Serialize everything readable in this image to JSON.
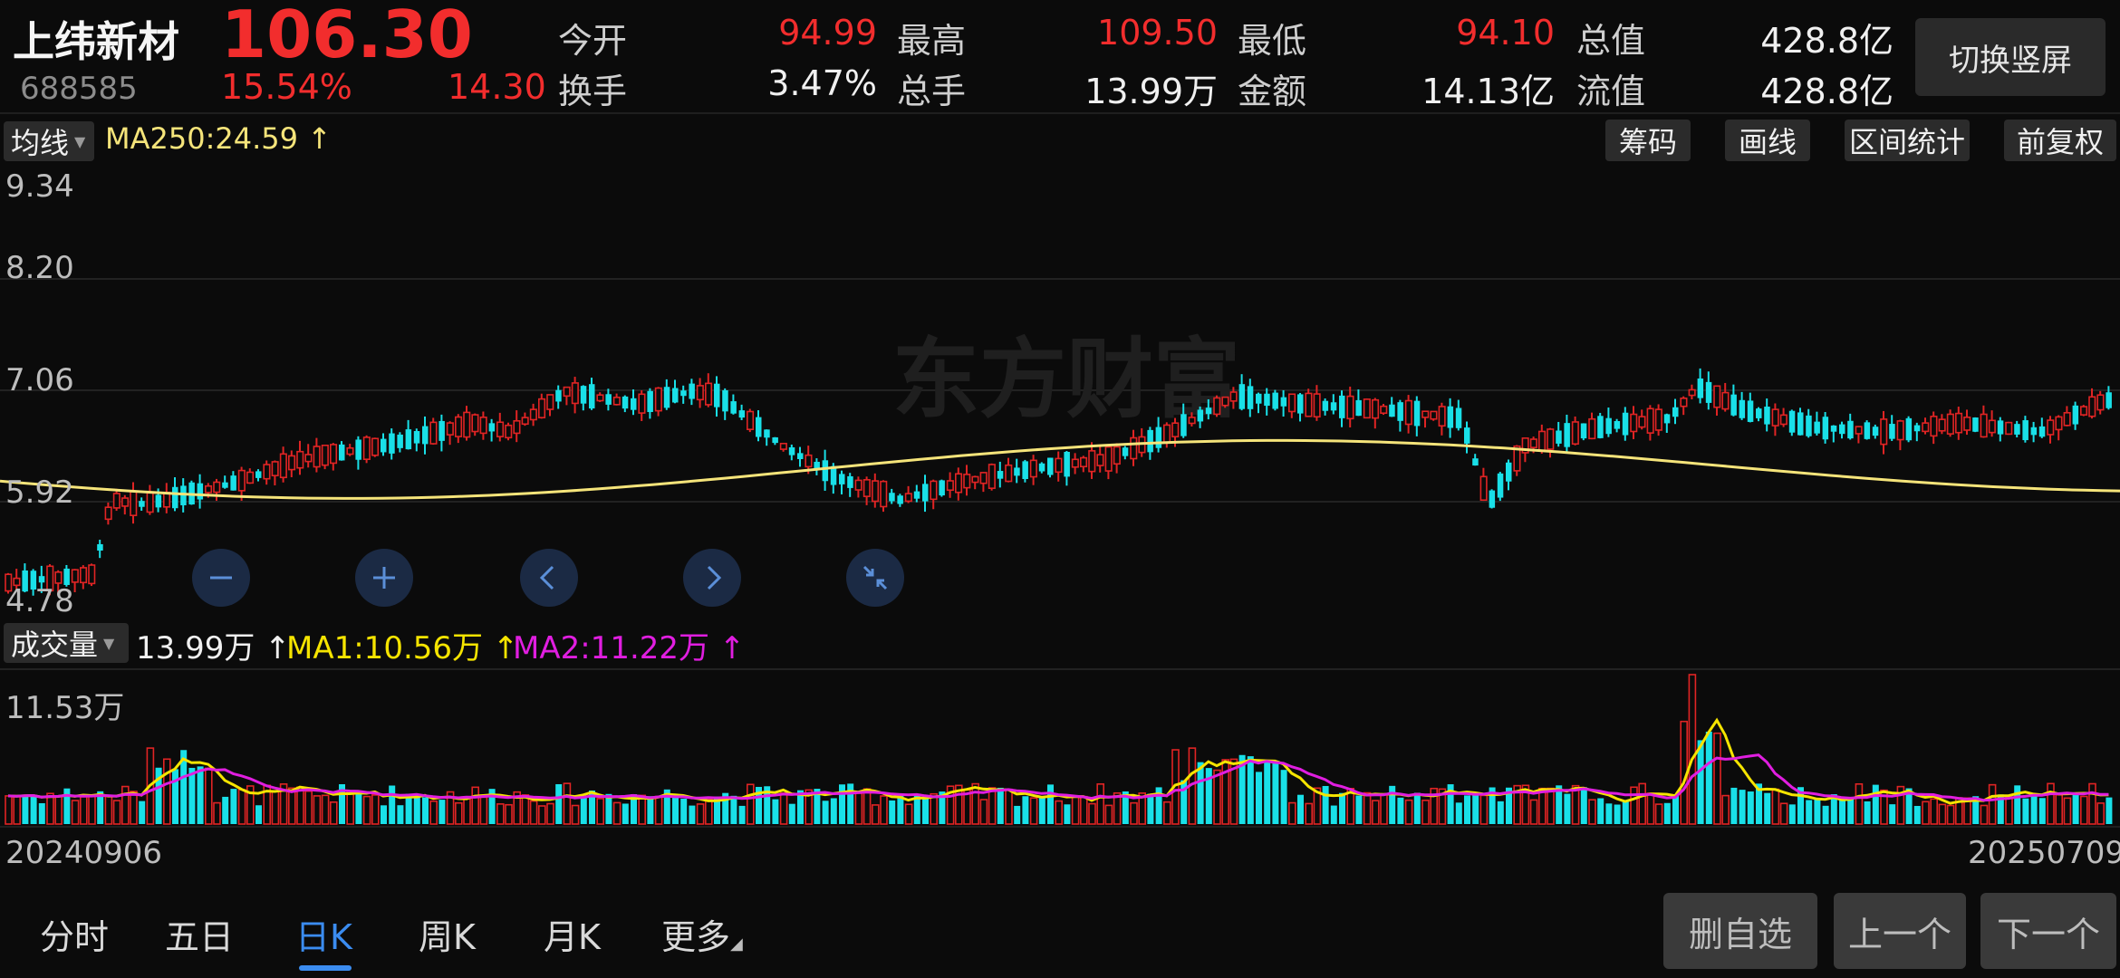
{
  "header": {
    "name": "上纬新材",
    "code": "688585",
    "price": "106.30",
    "change_pct": "15.54%",
    "change_amt": "14.30",
    "stats": [
      {
        "label": "今开",
        "value": "94.99",
        "color": "#f22d2d"
      },
      {
        "label": "最高",
        "value": "109.50",
        "color": "#f22d2d"
      },
      {
        "label": "最低",
        "value": "94.10",
        "color": "#f22d2d"
      },
      {
        "label": "总值",
        "value": "428.8亿",
        "color": "#f0f0f0"
      },
      {
        "label": "换手",
        "value": "3.47%",
        "color": "#f0f0f0"
      },
      {
        "label": "总手",
        "value": "13.99万",
        "color": "#f0f0f0"
      },
      {
        "label": "金额",
        "value": "14.13亿",
        "color": "#f0f0f0"
      },
      {
        "label": "流值",
        "value": "428.8亿",
        "color": "#f0f0f0"
      }
    ],
    "switch_label": "切换竖屏"
  },
  "toolbar": {
    "indicator": "均线",
    "ma250": "MA250:24.59 ↑",
    "buttons": [
      "筹码",
      "画线",
      "区间统计",
      "前复权"
    ]
  },
  "price_axis": [
    "9.34",
    "8.20",
    "7.06",
    "5.92",
    "4.78"
  ],
  "watermark": "东方财富",
  "volume": {
    "indicator": "成交量",
    "current": "13.99万 ↑",
    "ma1": "MA1:10.56万 ↑",
    "ma2": "MA2:11.22万 ↑",
    "axis_top": "11.53万"
  },
  "date_start": "20240906",
  "date_end": "20250709",
  "tabs": [
    {
      "label": "分时",
      "active": false
    },
    {
      "label": "五日",
      "active": false
    },
    {
      "label": "日K",
      "active": true
    },
    {
      "label": "周K",
      "active": false
    },
    {
      "label": "月K",
      "active": false
    },
    {
      "label": "更多",
      "active": false
    }
  ],
  "bottom_buttons": [
    "删自选",
    "上一个",
    "下一个"
  ],
  "colors": {
    "up": "#e02424",
    "down": "#19e0e8",
    "ma250": "#f5e47a",
    "ma1": "#f5e400",
    "ma2": "#e01ee0",
    "accent": "#3b8cf0"
  },
  "nav_icons": [
    "minus-icon",
    "plus-icon",
    "chevron-left-icon",
    "chevron-right-icon",
    "collapse-icon"
  ]
}
